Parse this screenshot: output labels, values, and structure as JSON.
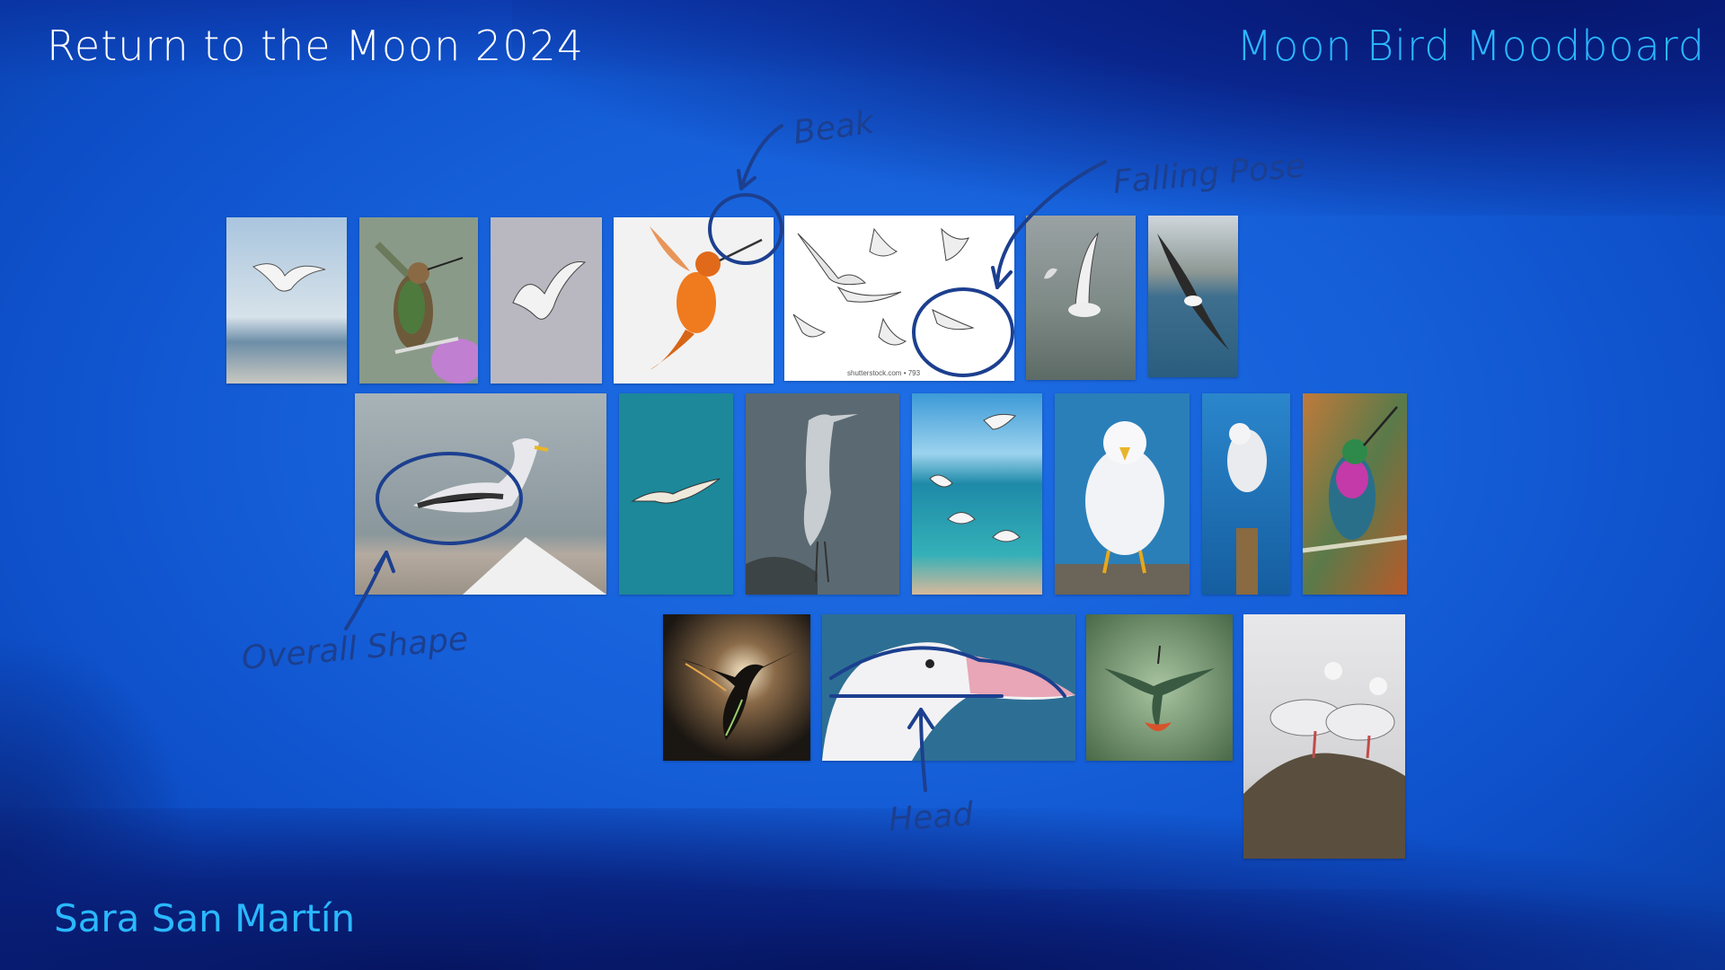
{
  "header": {
    "project_title": "Return to the Moon 2024",
    "board_title": "Moon Bird Moodboard"
  },
  "footer": {
    "author": "Sara San Martín"
  },
  "annotations": {
    "beak": "Beak",
    "falling_pose": "Falling Pose",
    "overall_shape": "Overall Shape",
    "head": "Head"
  },
  "watermark": "shutterstock.com • 793",
  "colors": {
    "background": "#155fd9",
    "title_left": "#ffffff",
    "title_right": "#2ab8ff",
    "author": "#2ab8ff",
    "annotation_ink": "#1c3f8f"
  }
}
